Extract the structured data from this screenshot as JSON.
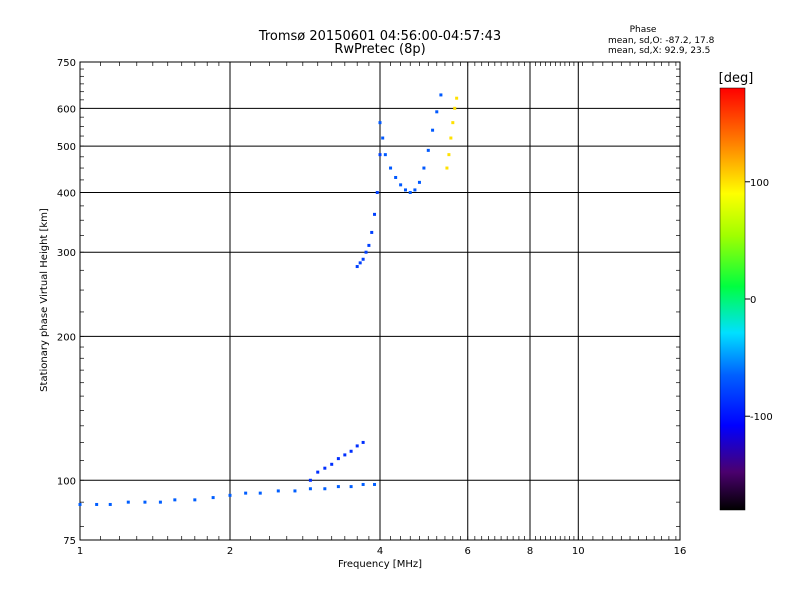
{
  "chart_data": {
    "type": "scatter",
    "title": "Tromsø 20150601 04:56:00-04:57:43",
    "subtitle": "RwPretec (8p)",
    "xlabel": "Frequency [MHz]",
    "ylabel": "Stationary phase Virtual Height [km]",
    "x_scale": "log",
    "y_scale": "log",
    "xlim": [
      1,
      16
    ],
    "ylim": [
      75,
      750
    ],
    "x_ticks": [
      "1",
      "2",
      "4",
      "6",
      "8",
      "10",
      "16"
    ],
    "y_ticks": [
      "75",
      "100",
      "200",
      "300",
      "400",
      "500",
      "600",
      "750"
    ],
    "grid": true,
    "phase_stats": {
      "heading": "Phase",
      "line_o": "mean, sd,O: -87.2, 17.8",
      "line_x": "mean, sd,X:  92.9, 23.5"
    },
    "colorbar": {
      "label": "[deg]",
      "range": [
        -180,
        180
      ],
      "ticks": [
        "100",
        "0",
        "-100"
      ]
    },
    "traces": [
      {
        "x": [
          1.0,
          1.08,
          1.15,
          1.25,
          1.35,
          1.45,
          1.55,
          1.7,
          1.85,
          2.0,
          2.15,
          2.3,
          2.5,
          2.7,
          2.9,
          3.1,
          3.3,
          3.5,
          3.7,
          3.9
        ],
        "y": [
          89,
          89,
          89,
          90,
          90,
          90,
          91,
          91,
          92,
          93,
          94,
          94,
          95,
          95,
          96,
          96,
          97,
          97,
          98,
          98
        ],
        "phase": -110
      },
      {
        "x": [
          2.9,
          3.0,
          3.1,
          3.2,
          3.3,
          3.4,
          3.5,
          3.6,
          3.7
        ],
        "y": [
          100,
          104,
          106,
          108,
          111,
          113,
          115,
          118,
          120
        ],
        "phase": -125
      },
      {
        "x": [
          3.6,
          3.65,
          3.7,
          3.75,
          3.8,
          3.85,
          3.9,
          3.95,
          4.0
        ],
        "y": [
          280,
          285,
          290,
          300,
          310,
          330,
          360,
          400,
          480
        ],
        "phase": -120
      },
      {
        "x": [
          4.0,
          4.05,
          4.1,
          4.2,
          4.3,
          4.4,
          4.5,
          4.6,
          4.7,
          4.8,
          4.9,
          5.0,
          5.1,
          5.2,
          5.3
        ],
        "y": [
          560,
          520,
          480,
          450,
          430,
          415,
          405,
          400,
          405,
          420,
          450,
          490,
          540,
          590,
          640
        ],
        "phase": -112
      },
      {
        "x": [
          5.45,
          5.5,
          5.55,
          5.6,
          5.65,
          5.7
        ],
        "y": [
          450,
          480,
          520,
          560,
          600,
          630
        ],
        "phase": 110
      }
    ]
  }
}
